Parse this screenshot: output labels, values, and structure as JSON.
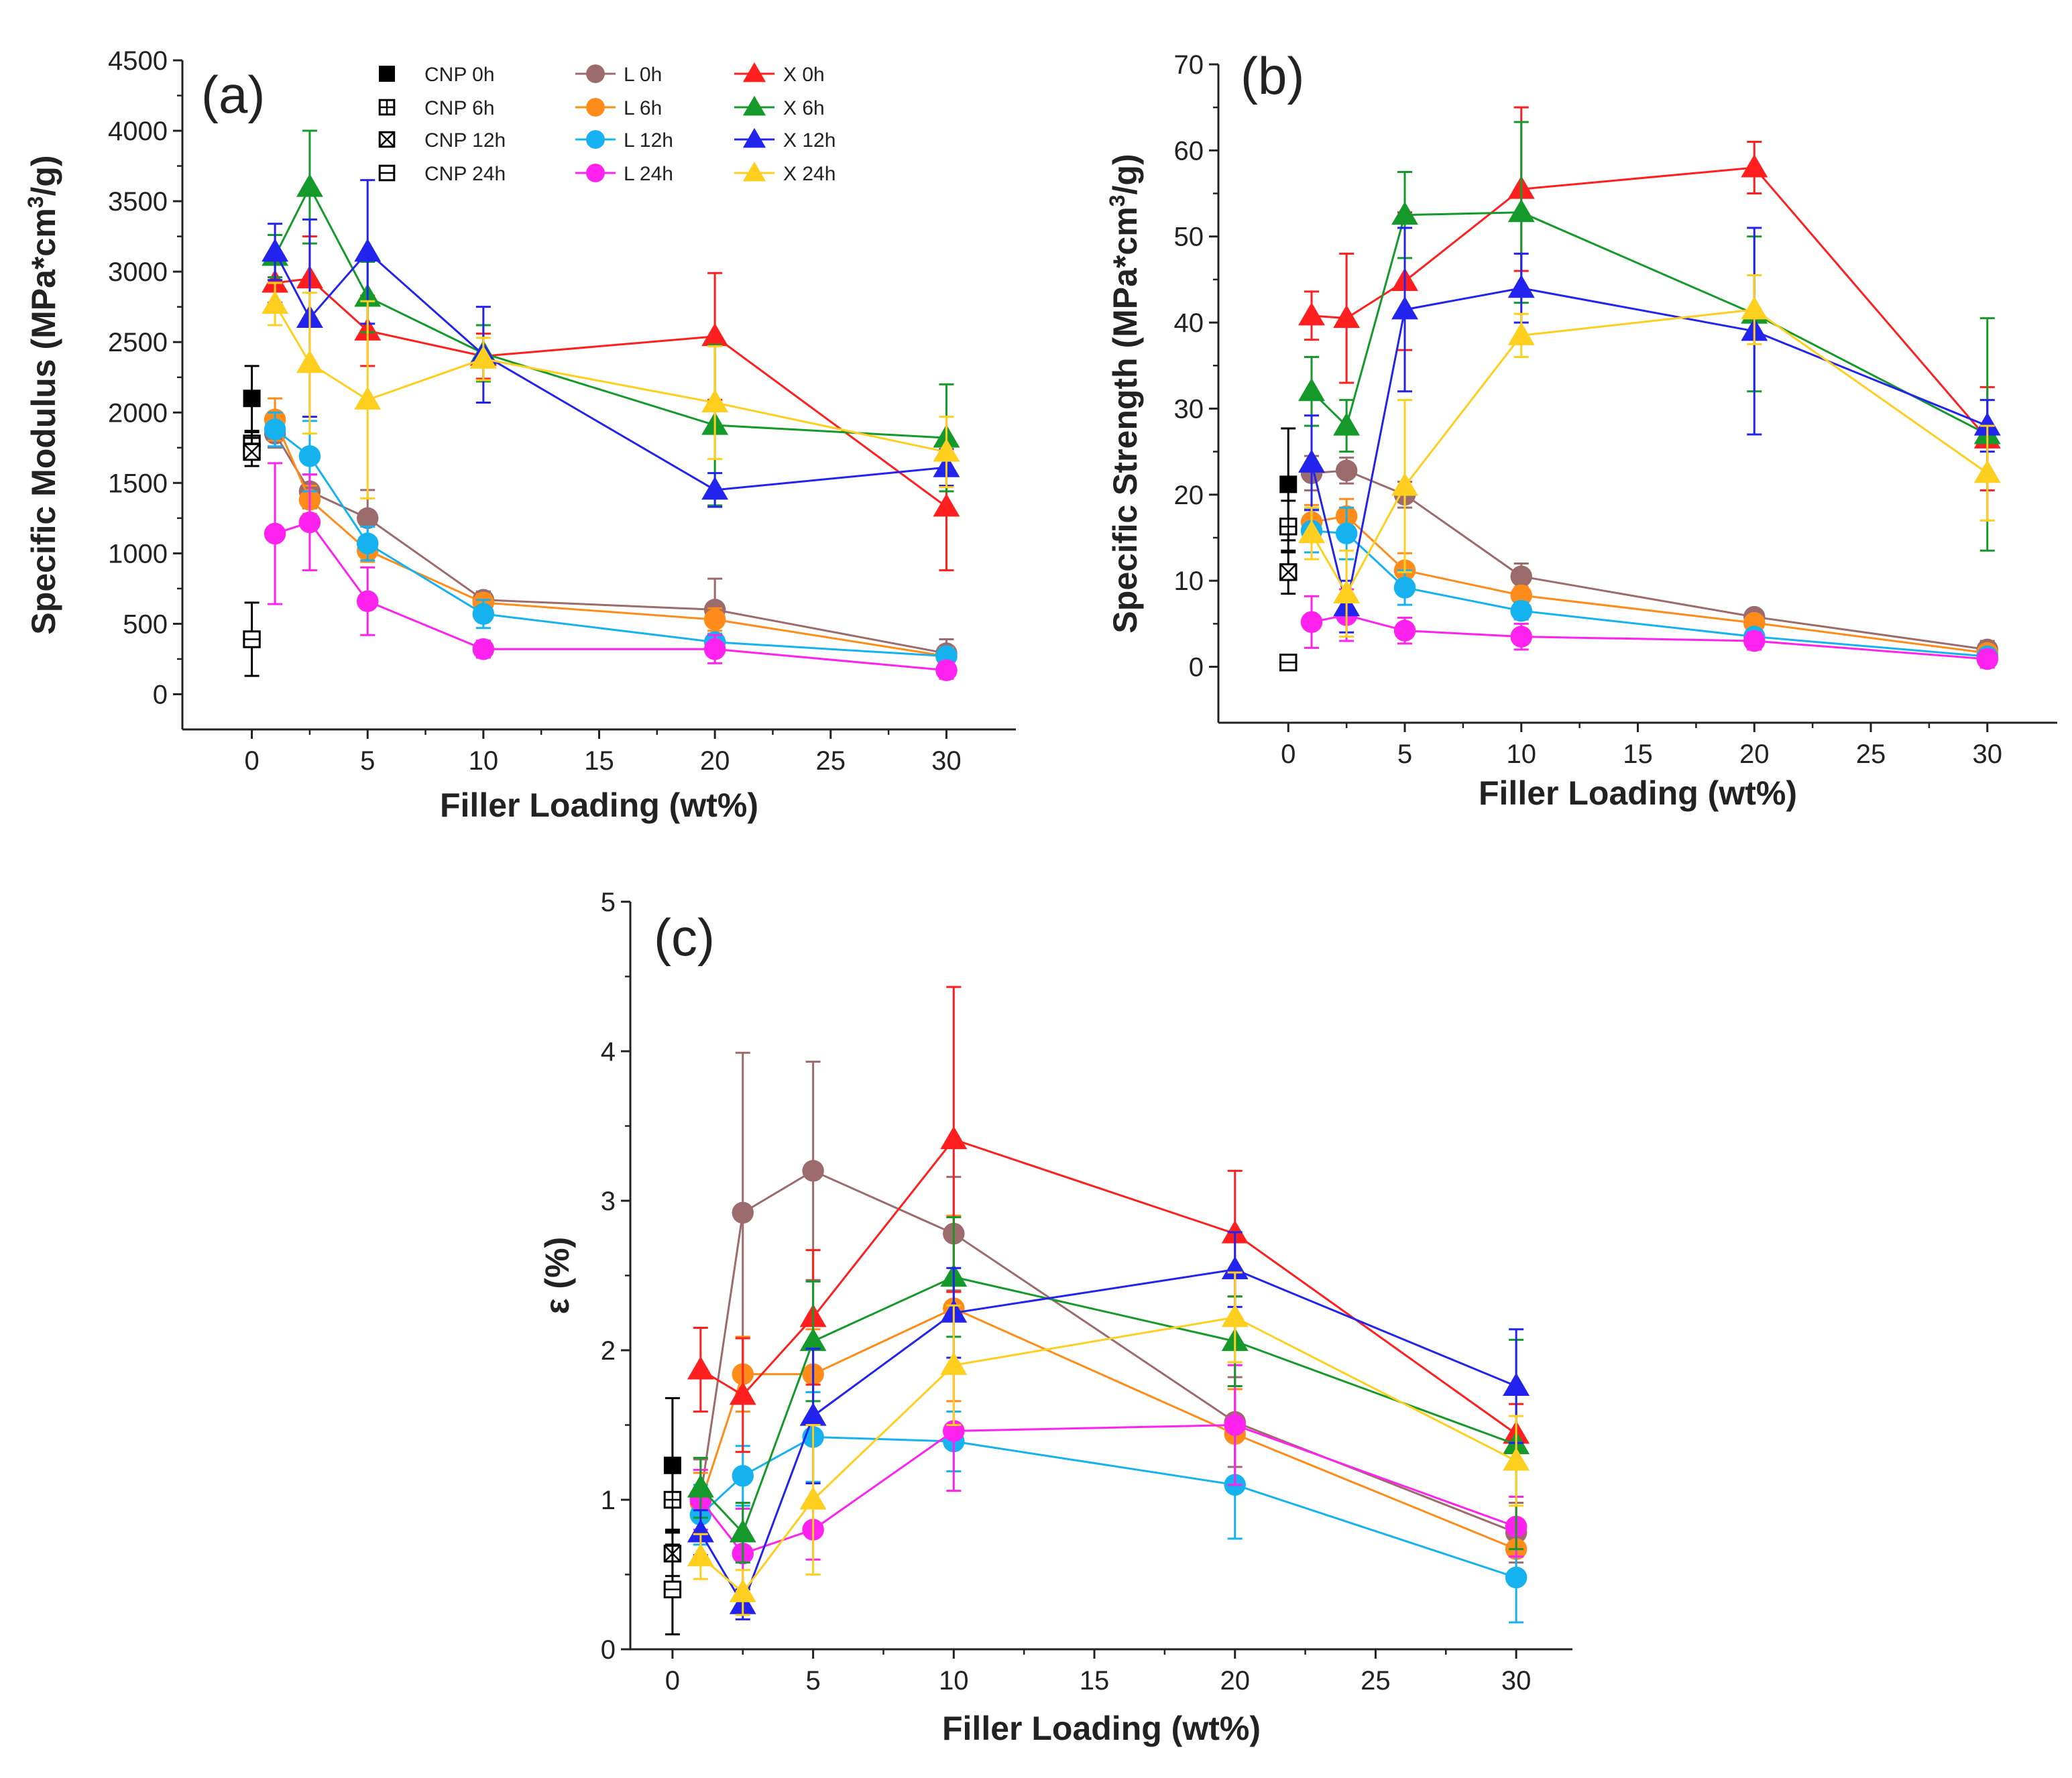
{
  "chart_data": [
    {
      "id": "a",
      "type": "line",
      "panel_label": "(a)",
      "xlabel": "Filler Loading (wt%)",
      "ylabel_main": "Specific Modulus (MPa*cm",
      "ylabel_sup": "3",
      "ylabel_end": "/g)",
      "xlim": [
        -3,
        33
      ],
      "ylim": [
        -250,
        4500
      ],
      "xticks": [
        0,
        5,
        10,
        15,
        20,
        25,
        30
      ],
      "yticks": [
        0,
        500,
        1000,
        1500,
        2000,
        2500,
        3000,
        3500,
        4000,
        4500
      ],
      "tick_labels_x": [
        "0",
        "5",
        "10",
        "15",
        "20",
        "25",
        "30"
      ],
      "tick_labels_y": [
        "0",
        "500",
        "1000",
        "1500",
        "2000",
        "2500",
        "3000",
        "3500",
        "4000",
        "4500"
      ],
      "legend": {
        "position": "top",
        "entries": [
          "CNP 0h",
          "CNP 6h",
          "CNP 12h",
          "CNP 24h",
          "L 0h",
          "L 6h",
          "L 12h",
          "L 24h",
          "X 0h",
          "X 6h",
          "X 12h",
          "X 24h"
        ]
      },
      "cnp_points": [
        {
          "name": "CNP 0h",
          "x": 0,
          "y": 2100,
          "err": 230
        },
        {
          "name": "CNP 6h",
          "x": 0,
          "y": 1780,
          "err": 80
        },
        {
          "name": "CNP 12h",
          "x": 0,
          "y": 1720,
          "err": 100
        },
        {
          "name": "CNP 24h",
          "x": 0,
          "y": 390,
          "err": 260
        }
      ],
      "x": [
        1,
        2.5,
        5,
        10,
        20,
        30
      ],
      "series": [
        {
          "name": "L 0h",
          "values": [
            1850,
            1440,
            1250,
            670,
            600,
            290
          ],
          "errors": [
            100,
            120,
            200,
            60,
            220,
            100
          ]
        },
        {
          "name": "L 6h",
          "values": [
            1950,
            1380,
            1020,
            650,
            530,
            270
          ],
          "errors": [
            150,
            100,
            80,
            60,
            80,
            60
          ]
        },
        {
          "name": "L 12h",
          "values": [
            1880,
            1690,
            1070,
            570,
            370,
            270
          ],
          "errors": [
            120,
            250,
            120,
            100,
            60,
            50
          ]
        },
        {
          "name": "L 24h",
          "values": [
            1140,
            1220,
            660,
            320,
            320,
            170
          ],
          "errors": [
            500,
            340,
            240,
            60,
            100,
            60
          ]
        },
        {
          "name": "X 0h",
          "values": [
            2920,
            2950,
            2580,
            2400,
            2540,
            1330
          ],
          "errors": [
            140,
            300,
            250,
            160,
            450,
            450
          ]
        },
        {
          "name": "X 6h",
          "values": [
            3110,
            3600,
            2820,
            2420,
            1910,
            1820
          ],
          "errors": [
            150,
            400,
            250,
            200,
            570,
            380
          ]
        },
        {
          "name": "X 12h",
          "values": [
            3140,
            2670,
            3140,
            2410,
            1450,
            1610
          ],
          "errors": [
            200,
            700,
            510,
            340,
            120,
            130
          ]
        },
        {
          "name": "X 24h",
          "values": [
            2770,
            2350,
            2090,
            2380,
            2070,
            1720
          ],
          "errors": [
            150,
            500,
            700,
            150,
            400,
            250
          ]
        }
      ]
    },
    {
      "id": "b",
      "type": "line",
      "panel_label": "(b)",
      "xlabel": "Filler Loading (wt%)",
      "ylabel_main": "Specific Strength (MPa*cm",
      "ylabel_sup": "3",
      "ylabel_end": "/g)",
      "xlim": [
        -3,
        33
      ],
      "ylim": [
        -6.5,
        70
      ],
      "xticks": [
        0,
        5,
        10,
        15,
        20,
        25,
        30
      ],
      "yticks": [
        0,
        10,
        20,
        30,
        40,
        50,
        60,
        70
      ],
      "tick_labels_x": [
        "0",
        "5",
        "10",
        "15",
        "20",
        "25",
        "30"
      ],
      "tick_labels_y": [
        "0",
        "10",
        "20",
        "30",
        "40",
        "50",
        "60",
        "70"
      ],
      "cnp_points": [
        {
          "name": "CNP 0h",
          "x": 0,
          "y": 21.2,
          "err": 6.5
        },
        {
          "name": "CNP 6h",
          "x": 0,
          "y": 16.3,
          "err": 3
        },
        {
          "name": "CNP 12h",
          "x": 0,
          "y": 11,
          "err": 2.5
        },
        {
          "name": "CNP 24h",
          "x": 0,
          "y": 0.5,
          "err": 0.8
        }
      ],
      "x": [
        1,
        2.5,
        5,
        10,
        20,
        30
      ],
      "series": [
        {
          "name": "L 0h",
          "values": [
            22.5,
            22.8,
            20,
            10.5,
            5.8,
            2
          ],
          "errors": [
            2,
            1.5,
            1.5,
            1.5,
            0.8,
            1
          ]
        },
        {
          "name": "L 6h",
          "values": [
            16.8,
            17.5,
            11.2,
            8.3,
            5.1,
            1.6
          ],
          "errors": [
            2,
            2,
            2,
            1,
            0.8,
            0.6
          ]
        },
        {
          "name": "L 12h",
          "values": [
            15.8,
            15.5,
            9.2,
            6.5,
            3.5,
            1.2
          ],
          "errors": [
            2.5,
            3,
            2,
            1,
            0.8,
            0.5
          ]
        },
        {
          "name": "L 24h",
          "values": [
            5.2,
            6,
            4.2,
            3.5,
            3,
            0.9
          ],
          "errors": [
            3,
            3,
            1.5,
            1.5,
            1,
            1
          ]
        },
        {
          "name": "X 0h",
          "values": [
            40.8,
            40.5,
            44.8,
            55.5,
            58,
            26.5
          ],
          "errors": [
            2.8,
            7.5,
            8,
            9.5,
            3,
            6
          ]
        },
        {
          "name": "X 6h",
          "values": [
            32,
            28,
            52.5,
            52.8,
            41,
            27
          ],
          "errors": [
            4,
            3,
            5,
            10.5,
            9,
            13.5
          ]
        },
        {
          "name": "X 12h",
          "values": [
            23.7,
            7,
            41.5,
            44,
            39,
            28
          ],
          "errors": [
            5.5,
            3,
            9.5,
            4,
            12,
            3
          ]
        },
        {
          "name": "X 24h",
          "values": [
            15.5,
            8.5,
            21,
            38.5,
            41.5,
            22.5
          ],
          "errors": [
            3,
            5,
            10,
            2.5,
            4,
            5.5
          ]
        }
      ]
    },
    {
      "id": "c",
      "type": "line",
      "panel_label": "(c)",
      "xlabel": "Filler Loading (wt%)",
      "ylabel_main": "ε (%)",
      "ylabel_sup": "",
      "ylabel_end": "",
      "xlim": [
        -1.5,
        32
      ],
      "ylim": [
        0,
        5
      ],
      "xticks": [
        0,
        5,
        10,
        15,
        20,
        25,
        30
      ],
      "yticks": [
        0,
        1,
        2,
        3,
        4,
        5
      ],
      "tick_labels_x": [
        "0",
        "5",
        "10",
        "15",
        "20",
        "25",
        "30"
      ],
      "tick_labels_y": [
        "0",
        "1",
        "2",
        "3",
        "4",
        "5"
      ],
      "cnp_points": [
        {
          "name": "CNP 0h",
          "x": 0,
          "y": 1.23,
          "err": 0.45
        },
        {
          "name": "CNP 6h",
          "x": 0,
          "y": 1.0,
          "err": 0.2
        },
        {
          "name": "CNP 12h",
          "x": 0,
          "y": 0.64,
          "err": 0.15
        },
        {
          "name": "CNP 24h",
          "x": 0,
          "y": 0.4,
          "err": 0.3
        }
      ],
      "x": [
        1,
        2.5,
        5,
        10,
        20,
        30
      ],
      "series": [
        {
          "name": "L 0h",
          "values": [
            1.02,
            2.92,
            3.2,
            2.78,
            1.52,
            0.78
          ],
          "errors": [
            0.25,
            1.07,
            0.73,
            0.38,
            0.3,
            0.2
          ]
        },
        {
          "name": "L 6h",
          "values": [
            0.98,
            1.84,
            1.84,
            2.28,
            1.44,
            0.67
          ],
          "errors": [
            0.2,
            0.25,
            0.3,
            0.62,
            0.3,
            0.2
          ]
        },
        {
          "name": "L 12h",
          "values": [
            0.9,
            1.16,
            1.42,
            1.39,
            1.1,
            0.48
          ],
          "errors": [
            0.2,
            0.2,
            0.3,
            0.2,
            0.36,
            0.3
          ]
        },
        {
          "name": "L 24h",
          "values": [
            1.0,
            0.64,
            0.8,
            1.46,
            1.5,
            0.82
          ],
          "errors": [
            0.2,
            0.3,
            0.2,
            0.4,
            0.4,
            0.2
          ]
        },
        {
          "name": "X 0h",
          "values": [
            1.87,
            1.7,
            2.22,
            3.41,
            2.78,
            1.44
          ],
          "errors": [
            0.28,
            0.38,
            0.45,
            1.02,
            0.42,
            0.2
          ]
        },
        {
          "name": "X 6h",
          "values": [
            1.08,
            0.78,
            2.06,
            2.49,
            2.06,
            1.37
          ],
          "errors": [
            0.2,
            0.2,
            0.4,
            0.4,
            0.3,
            0.7
          ]
        },
        {
          "name": "X 12h",
          "values": [
            0.78,
            0.3,
            1.56,
            2.25,
            2.54,
            1.76
          ],
          "errors": [
            0.15,
            0.1,
            0.45,
            0.3,
            0.25,
            0.38
          ]
        },
        {
          "name": "X 24h",
          "values": [
            0.62,
            0.38,
            1.0,
            1.9,
            2.22,
            1.26
          ],
          "errors": [
            0.15,
            0.15,
            0.5,
            0.4,
            0.3,
            0.3
          ]
        }
      ]
    }
  ],
  "series_styles": {
    "L 0h": {
      "color": "#9c6b6b",
      "marker": "circle"
    },
    "L 6h": {
      "color": "#ff8c1a",
      "marker": "circle"
    },
    "L 12h": {
      "color": "#16b1ef",
      "marker": "circle"
    },
    "L 24h": {
      "color": "#ff22ee",
      "marker": "circle"
    },
    "X 0h": {
      "color": "#ff1f1f",
      "marker": "triangle"
    },
    "X 6h": {
      "color": "#14992a",
      "marker": "triangle"
    },
    "X 12h": {
      "color": "#2323ee",
      "marker": "triangle"
    },
    "X 24h": {
      "color": "#ffcf1f",
      "marker": "triangle"
    },
    "CNP 0h": {
      "color": "#000000",
      "marker": "square-filled"
    },
    "CNP 6h": {
      "color": "#000000",
      "marker": "square-plus"
    },
    "CNP 12h": {
      "color": "#000000",
      "marker": "square-x"
    },
    "CNP 24h": {
      "color": "#000000",
      "marker": "square-line"
    }
  }
}
